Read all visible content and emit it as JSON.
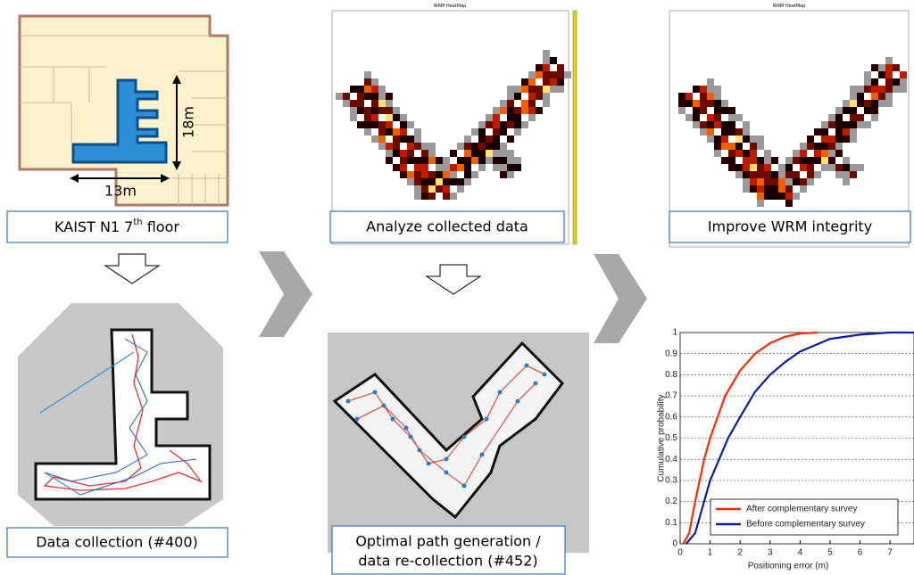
{
  "floor_label": {
    "text": "KAIST N1 7",
    "sup": "th",
    "tail": " floor"
  },
  "dim_width": "13m",
  "dim_height": "18m",
  "step_collect": "Data collection (#400)",
  "step_analyze": "Analyze collected data",
  "heatmap_title": "WRM HeatMap",
  "step_optimal": [
    "Optimal path generation /",
    "data re-collection (#452)"
  ],
  "step_improve": "Improve WRM integrity",
  "chart_data": {
    "type": "line",
    "xlabel": "Positioning error (m)",
    "ylabel": "Cumulative probability",
    "xlim": [
      0,
      7.8
    ],
    "ylim": [
      0,
      1
    ],
    "xticks": [
      0,
      1,
      2,
      3,
      4,
      5,
      6,
      7
    ],
    "yticks": [
      0,
      0.1,
      0.2,
      0.3,
      0.4,
      0.5,
      0.6,
      0.7,
      0.8,
      0.9,
      1
    ],
    "grid": true,
    "legend": "lower right",
    "series": [
      {
        "name": "After complementary survey",
        "color": "#ff2a00",
        "x": [
          0.1,
          0.3,
          0.5,
          0.8,
          1.0,
          1.3,
          1.5,
          2.0,
          2.5,
          3.0,
          3.5,
          4.0,
          4.6
        ],
        "values": [
          0,
          0.05,
          0.2,
          0.4,
          0.5,
          0.62,
          0.7,
          0.82,
          0.9,
          0.95,
          0.98,
          0.995,
          1
        ]
      },
      {
        "name": "Before complementary survey",
        "color": "#0a1e9e",
        "x": [
          0.2,
          0.5,
          0.8,
          1.0,
          1.3,
          1.6,
          2.0,
          2.5,
          3.0,
          3.5,
          4.0,
          4.5,
          5.0,
          6.0,
          7.0,
          7.8
        ],
        "values": [
          0,
          0.05,
          0.2,
          0.3,
          0.4,
          0.5,
          0.6,
          0.72,
          0.8,
          0.86,
          0.91,
          0.94,
          0.97,
          0.99,
          1,
          1
        ]
      }
    ]
  }
}
